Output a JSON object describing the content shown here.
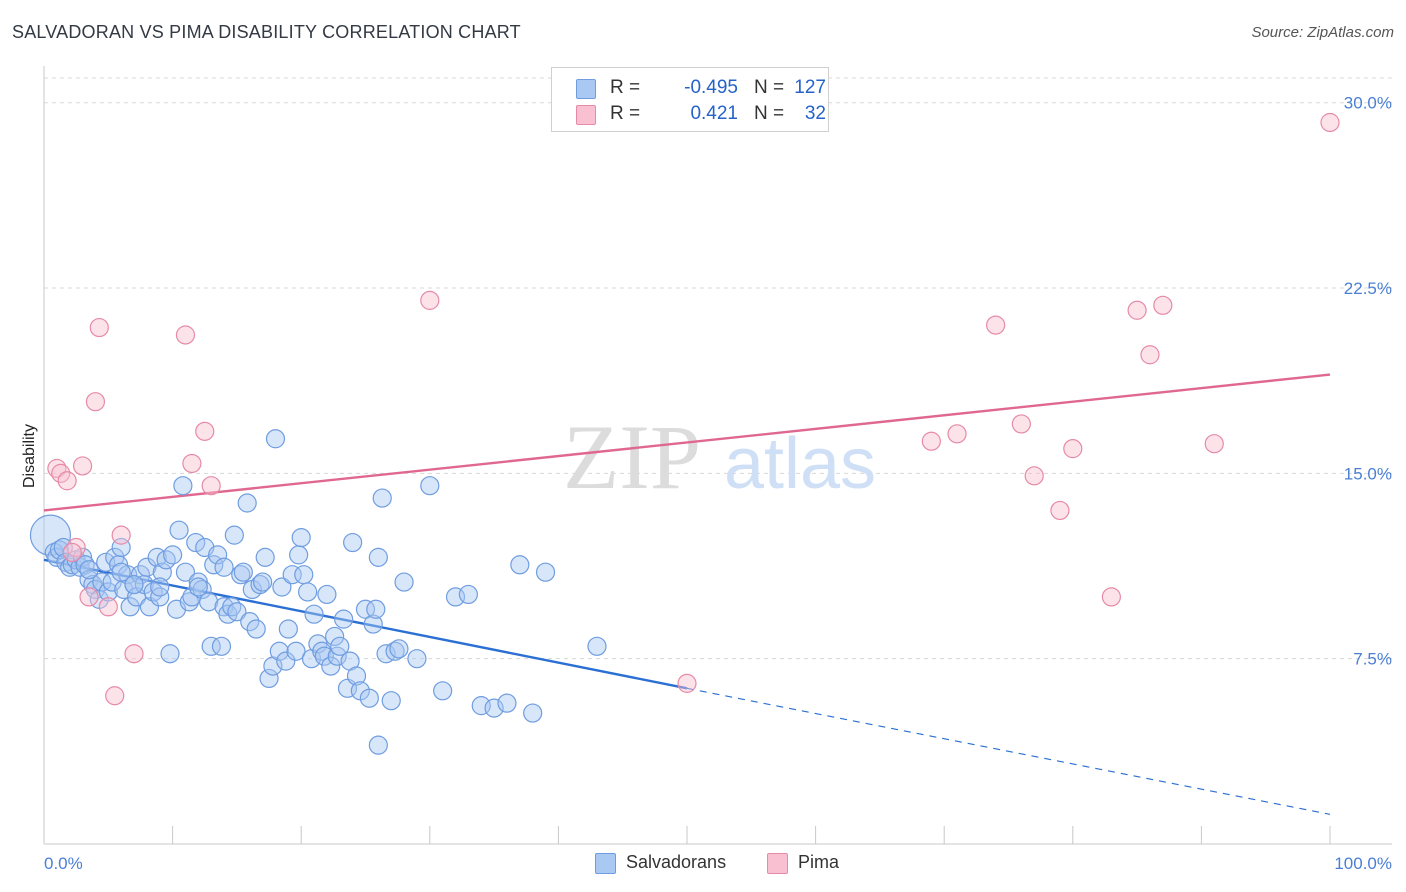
{
  "title": "SALVADORAN VS PIMA DISABILITY CORRELATION CHART",
  "source": "Source: ZipAtlas.com",
  "watermark": {
    "zip": "ZIP",
    "atlas": "atlas"
  },
  "legend": {
    "rows": [
      {
        "r_label": "R =",
        "r_value": "-0.495",
        "n_label": "N =",
        "n_value": "127",
        "color": "#a9c8f2",
        "border": "#6f9de0"
      },
      {
        "r_label": "R =",
        "r_value": "0.421",
        "n_label": "N =",
        "n_value": "32",
        "color": "#f8c0d0",
        "border": "#e68aa8"
      }
    ]
  },
  "bottom_legend": {
    "series1": "Salvadorans",
    "series2": "Pima"
  },
  "chart_data": {
    "type": "scatter",
    "title": "SALVADORAN VS PIMA DISABILITY CORRELATION CHART",
    "xlabel": "",
    "ylabel": "Disability",
    "xlim": [
      0,
      100
    ],
    "ylim": [
      0,
      31
    ],
    "x_tick_labels": [
      "0.0%",
      "100.0%"
    ],
    "y_ticks": [
      7.5,
      15.0,
      22.5,
      30.0
    ],
    "y_tick_labels": [
      "7.5%",
      "15.0%",
      "22.5%",
      "30.0%"
    ],
    "series": [
      {
        "name": "Salvadorans",
        "color": "#6f9de0",
        "fill": "#a9c8f2",
        "trend": {
          "x0": 0,
          "y0": 11.5,
          "x1": 50,
          "y1": 6.3,
          "dash_to_x": 100,
          "dash_to_y": 1.2,
          "color": "#2a6fd2"
        },
        "points": [
          [
            0.5,
            12.5
          ],
          [
            0.8,
            11.8
          ],
          [
            1.0,
            11.6
          ],
          [
            1.2,
            11.9
          ],
          [
            1.5,
            12.0
          ],
          [
            1.7,
            11.4
          ],
          [
            2.0,
            11.2
          ],
          [
            2.2,
            11.3
          ],
          [
            2.5,
            11.5
          ],
          [
            2.8,
            11.2
          ],
          [
            3.0,
            11.6
          ],
          [
            3.2,
            11.3
          ],
          [
            3.5,
            10.7
          ],
          [
            3.8,
            10.5
          ],
          [
            4.0,
            10.3
          ],
          [
            4.3,
            9.9
          ],
          [
            4.5,
            10.6
          ],
          [
            4.8,
            11.4
          ],
          [
            5.0,
            10.2
          ],
          [
            5.3,
            10.6
          ],
          [
            5.5,
            11.6
          ],
          [
            5.8,
            11.3
          ],
          [
            6.0,
            12.0
          ],
          [
            6.2,
            10.3
          ],
          [
            6.5,
            10.9
          ],
          [
            6.7,
            9.6
          ],
          [
            7.0,
            10.5
          ],
          [
            7.2,
            10.0
          ],
          [
            7.5,
            10.9
          ],
          [
            7.8,
            10.5
          ],
          [
            8.0,
            11.2
          ],
          [
            8.2,
            9.6
          ],
          [
            8.5,
            10.2
          ],
          [
            8.8,
            11.6
          ],
          [
            9.0,
            10.0
          ],
          [
            9.2,
            11.0
          ],
          [
            9.5,
            11.5
          ],
          [
            9.8,
            7.7
          ],
          [
            10.0,
            11.7
          ],
          [
            10.3,
            9.5
          ],
          [
            10.5,
            12.7
          ],
          [
            10.8,
            14.5
          ],
          [
            11.0,
            11.0
          ],
          [
            11.3,
            9.8
          ],
          [
            11.5,
            10.0
          ],
          [
            11.8,
            12.2
          ],
          [
            12.0,
            10.6
          ],
          [
            12.3,
            10.3
          ],
          [
            12.5,
            12.0
          ],
          [
            12.8,
            9.8
          ],
          [
            13.0,
            8.0
          ],
          [
            13.2,
            11.3
          ],
          [
            13.5,
            11.7
          ],
          [
            13.8,
            8.0
          ],
          [
            14.0,
            9.6
          ],
          [
            14.3,
            9.3
          ],
          [
            14.6,
            9.6
          ],
          [
            14.8,
            12.5
          ],
          [
            15.0,
            9.4
          ],
          [
            15.3,
            10.9
          ],
          [
            15.5,
            11.0
          ],
          [
            15.8,
            13.8
          ],
          [
            16.0,
            9.0
          ],
          [
            16.2,
            10.3
          ],
          [
            16.5,
            8.7
          ],
          [
            16.8,
            10.5
          ],
          [
            17.0,
            10.6
          ],
          [
            17.2,
            11.6
          ],
          [
            17.5,
            6.7
          ],
          [
            17.8,
            7.2
          ],
          [
            18.0,
            16.4
          ],
          [
            18.3,
            7.8
          ],
          [
            18.5,
            10.4
          ],
          [
            18.8,
            7.4
          ],
          [
            19.0,
            8.7
          ],
          [
            19.3,
            10.9
          ],
          [
            19.6,
            7.8
          ],
          [
            19.8,
            11.7
          ],
          [
            20.0,
            12.4
          ],
          [
            20.2,
            10.9
          ],
          [
            20.5,
            10.2
          ],
          [
            20.8,
            7.5
          ],
          [
            21.0,
            9.3
          ],
          [
            21.3,
            8.1
          ],
          [
            21.6,
            7.8
          ],
          [
            21.8,
            7.6
          ],
          [
            22.0,
            10.1
          ],
          [
            22.3,
            7.2
          ],
          [
            22.6,
            8.4
          ],
          [
            22.8,
            7.6
          ],
          [
            23.0,
            8.0
          ],
          [
            23.3,
            9.1
          ],
          [
            23.6,
            6.3
          ],
          [
            23.8,
            7.4
          ],
          [
            24.0,
            12.2
          ],
          [
            24.3,
            6.8
          ],
          [
            24.6,
            6.2
          ],
          [
            25.0,
            9.5
          ],
          [
            25.3,
            5.9
          ],
          [
            25.6,
            8.9
          ],
          [
            25.8,
            9.5
          ],
          [
            26.0,
            11.6
          ],
          [
            26.3,
            14.0
          ],
          [
            26.6,
            7.7
          ],
          [
            27.0,
            5.8
          ],
          [
            27.3,
            7.8
          ],
          [
            27.6,
            7.9
          ],
          [
            28.0,
            10.6
          ],
          [
            29.0,
            7.5
          ],
          [
            30.0,
            14.5
          ],
          [
            31.0,
            6.2
          ],
          [
            32.0,
            10.0
          ],
          [
            33.0,
            10.1
          ],
          [
            34.0,
            5.6
          ],
          [
            35.0,
            5.5
          ],
          [
            36.0,
            5.7
          ],
          [
            37.0,
            11.3
          ],
          [
            38.0,
            5.3
          ],
          [
            39.0,
            11.0
          ],
          [
            43.0,
            8.0
          ],
          [
            26.0,
            4.0
          ],
          [
            12.0,
            10.4
          ],
          [
            7.0,
            10.5
          ],
          [
            14.0,
            11.2
          ],
          [
            9.0,
            10.4
          ],
          [
            6.0,
            11.0
          ],
          [
            3.5,
            11.1
          ]
        ]
      },
      {
        "name": "Pima",
        "color": "#e68aa8",
        "fill": "#f8c0d0",
        "trend": {
          "x0": 0,
          "y0": 13.5,
          "x1": 100,
          "y1": 19.0,
          "color": "#e06890"
        },
        "points": [
          [
            1.0,
            15.2
          ],
          [
            1.3,
            15.0
          ],
          [
            1.8,
            14.7
          ],
          [
            2.5,
            12.0
          ],
          [
            3.0,
            15.3
          ],
          [
            3.5,
            10.0
          ],
          [
            4.0,
            17.9
          ],
          [
            4.3,
            20.9
          ],
          [
            5.0,
            9.6
          ],
          [
            5.5,
            6.0
          ],
          [
            6.0,
            12.5
          ],
          [
            7.0,
            7.7
          ],
          [
            11.0,
            20.6
          ],
          [
            11.5,
            15.4
          ],
          [
            12.5,
            16.7
          ],
          [
            13.0,
            14.5
          ],
          [
            30.0,
            22.0
          ],
          [
            50.0,
            6.5
          ],
          [
            69.0,
            16.3
          ],
          [
            71.0,
            16.6
          ],
          [
            74.0,
            21.0
          ],
          [
            76.0,
            17.0
          ],
          [
            77.0,
            14.9
          ],
          [
            79.0,
            13.5
          ],
          [
            80.0,
            16.0
          ],
          [
            83.0,
            10.0
          ],
          [
            85.0,
            21.6
          ],
          [
            86.0,
            19.8
          ],
          [
            87.0,
            21.8
          ],
          [
            91.0,
            16.2
          ],
          [
            100.0,
            29.2
          ],
          [
            2.2,
            11.8
          ]
        ]
      }
    ]
  }
}
